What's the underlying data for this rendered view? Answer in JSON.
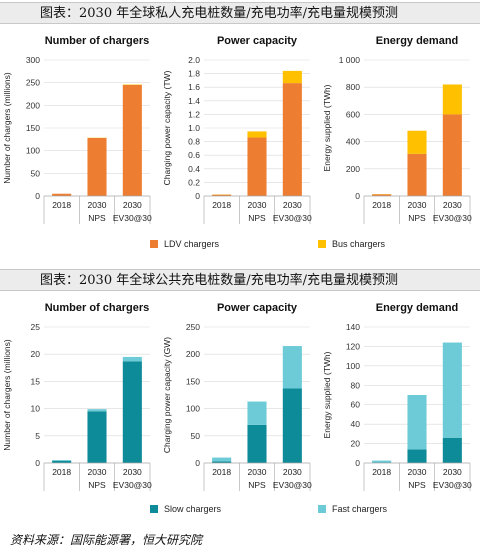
{
  "header_top": "图表：2030 年全球私人充电桩数量/充电功率/充电量规模预测",
  "header_bottom": "图表：2030 年全球公共充电桩数量/充电功率/充电量规模预测",
  "source": "资料来源：国际能源署，恒大研究院",
  "colors": {
    "ldv": "#ED7D31",
    "bus": "#FFC000",
    "slow": "#0E8B99",
    "fast": "#6DCBD8",
    "grid": "#d9d9d9",
    "axis": "#a6a6a6"
  },
  "legend_top": [
    {
      "label": "LDV chargers",
      "color_key": "ldv"
    },
    {
      "label": "Bus chargers",
      "color_key": "bus"
    }
  ],
  "legend_bottom": [
    {
      "label": "Slow chargers",
      "color_key": "slow"
    },
    {
      "label": "Fast chargers",
      "color_key": "fast"
    }
  ],
  "chart_data": [
    {
      "type": "bar",
      "stacked": true,
      "title": "Number of chargers",
      "ylabel": "Number of chargers (millions)",
      "categories": [
        "2018",
        "2030",
        "2030"
      ],
      "subcategories": [
        "",
        "NPS",
        "EV30@30"
      ],
      "yticks": [
        "0",
        "50",
        "100",
        "150",
        "200",
        "250",
        "300"
      ],
      "ylim": [
        0,
        300
      ],
      "grid": true,
      "series": [
        {
          "name": "LDV chargers",
          "color_key": "ldv",
          "values": [
            5,
            128,
            245
          ]
        },
        {
          "name": "Bus chargers",
          "color_key": "bus",
          "values": [
            0.05,
            0.5,
            1
          ]
        }
      ]
    },
    {
      "type": "bar",
      "stacked": true,
      "title": "Power capacity",
      "ylabel": "Charging power capacity (TW)",
      "categories": [
        "2018",
        "2030",
        "2030"
      ],
      "subcategories": [
        "",
        "NPS",
        "EV30@30"
      ],
      "yticks": [
        "0",
        "0.2",
        "0.4",
        "0.6",
        "0.8",
        "1.0",
        "1.2",
        "1.4",
        "1.6",
        "1.8",
        "2.0"
      ],
      "ylim": [
        0,
        2.0
      ],
      "grid": true,
      "series": [
        {
          "name": "LDV chargers",
          "color_key": "ldv",
          "values": [
            0.02,
            0.86,
            1.66
          ]
        },
        {
          "name": "Bus chargers",
          "color_key": "bus",
          "values": [
            0.003,
            0.09,
            0.18
          ]
        }
      ]
    },
    {
      "type": "bar",
      "stacked": true,
      "title": "Energy demand",
      "ylabel": "Energy supplied (TWh)",
      "categories": [
        "2018",
        "2030",
        "2030"
      ],
      "subcategories": [
        "",
        "NPS",
        "EV30@30"
      ],
      "yticks": [
        "0",
        "200",
        "400",
        "600",
        "800",
        "1 000"
      ],
      "ylim": [
        0,
        1000
      ],
      "grid": true,
      "series": [
        {
          "name": "LDV chargers",
          "color_key": "ldv",
          "values": [
            12,
            310,
            600
          ]
        },
        {
          "name": "Bus chargers",
          "color_key": "bus",
          "values": [
            2,
            170,
            220
          ]
        }
      ]
    },
    {
      "type": "bar",
      "stacked": true,
      "title": "Number of chargers",
      "ylabel": "Number of chargers (millions)",
      "categories": [
        "2018",
        "2030",
        "2030"
      ],
      "subcategories": [
        "",
        "NPS",
        "EV30@30"
      ],
      "yticks": [
        "0",
        "5",
        "10",
        "15",
        "20",
        "25"
      ],
      "ylim": [
        0,
        25
      ],
      "grid": true,
      "series": [
        {
          "name": "Slow chargers",
          "color_key": "slow",
          "values": [
            0.4,
            9.5,
            18.7
          ]
        },
        {
          "name": "Fast chargers",
          "color_key": "fast",
          "values": [
            0.15,
            0.4,
            0.8
          ]
        }
      ]
    },
    {
      "type": "bar",
      "stacked": true,
      "title": "Power capacity",
      "ylabel": "Charging power capacity (GW)",
      "categories": [
        "2018",
        "2030",
        "2030"
      ],
      "subcategories": [
        "",
        "NPS",
        "EV30@30"
      ],
      "yticks": [
        "0",
        "50",
        "100",
        "150",
        "200",
        "250"
      ],
      "ylim": [
        0,
        250
      ],
      "grid": true,
      "series": [
        {
          "name": "Slow chargers",
          "color_key": "slow",
          "values": [
            3,
            70,
            137
          ]
        },
        {
          "name": "Fast chargers",
          "color_key": "fast",
          "values": [
            7,
            43,
            78
          ]
        }
      ]
    },
    {
      "type": "bar",
      "stacked": true,
      "title": "Energy demand",
      "ylabel": "Energy supplied (TWh)",
      "categories": [
        "2018",
        "2030",
        "2030"
      ],
      "subcategories": [
        "",
        "NPS",
        "EV30@30"
      ],
      "yticks": [
        "0",
        "20",
        "40",
        "60",
        "80",
        "100",
        "120",
        "140"
      ],
      "ylim": [
        0,
        140
      ],
      "grid": true,
      "series": [
        {
          "name": "Slow chargers",
          "color_key": "slow",
          "values": [
            0.5,
            14,
            26
          ]
        },
        {
          "name": "Fast chargers",
          "color_key": "fast",
          "values": [
            2,
            56,
            98
          ]
        }
      ]
    }
  ]
}
